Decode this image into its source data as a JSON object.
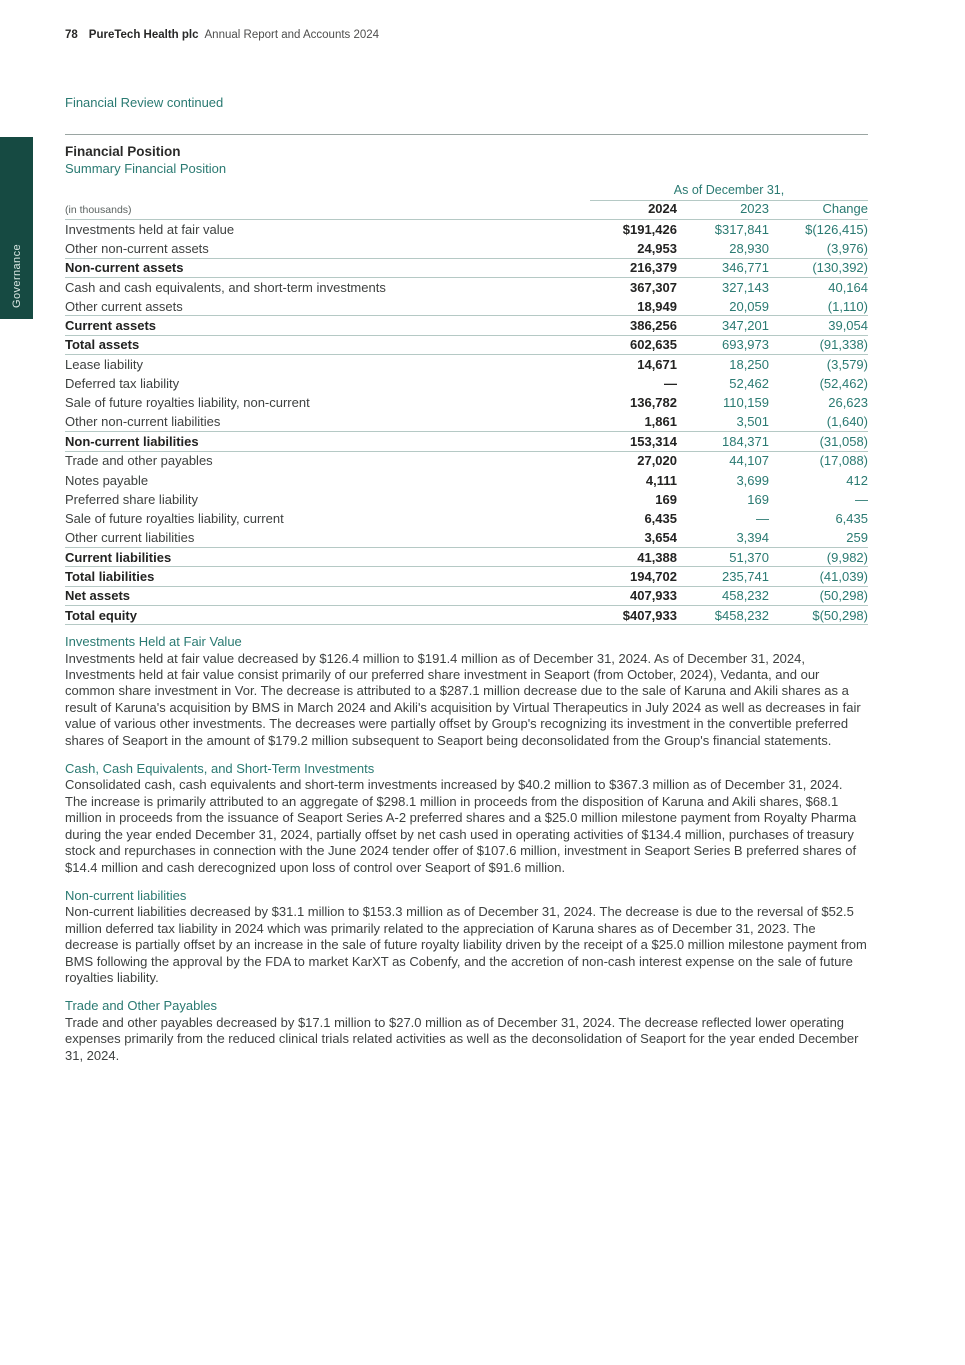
{
  "header": {
    "page_number": "78",
    "company": "PureTech Health plc",
    "report_title": "Annual Report and Accounts 2024"
  },
  "sidebar_tab": {
    "label": "Governance"
  },
  "financial_review": {
    "continued_heading": "Financial Review continued"
  },
  "financial_position": {
    "title": "Financial Position",
    "subtitle": "Summary Financial Position"
  },
  "table": {
    "group_header": "As of December 31,",
    "unit_label": "(in thousands)",
    "columns": [
      "2024",
      "2023",
      "Change"
    ],
    "rows": [
      {
        "label": "Investments held at fair value",
        "v2024": "$191,426",
        "v2023": "$317,841",
        "change": "$(126,415)",
        "bold": false,
        "top_rule": false
      },
      {
        "label": "Other non-current assets",
        "v2024": "24,953",
        "v2023": "28,930",
        "change": "(3,976)",
        "bold": false,
        "top_rule": false
      },
      {
        "label": "Non-current assets",
        "v2024": "216,379",
        "v2023": "346,771",
        "change": "(130,392)",
        "bold": true,
        "top_rule": true
      },
      {
        "label": "Cash and cash equivalents, and short-term investments",
        "v2024": "367,307",
        "v2023": "327,143",
        "change": "40,164",
        "bold": false,
        "top_rule": true
      },
      {
        "label": "Other current assets",
        "v2024": "18,949",
        "v2023": "20,059",
        "change": "(1,110)",
        "bold": false,
        "top_rule": false
      },
      {
        "label": "Current assets",
        "v2024": "386,256",
        "v2023": "347,201",
        "change": "39,054",
        "bold": true,
        "top_rule": true
      },
      {
        "label": "Total assets",
        "v2024": "602,635",
        "v2023": "693,973",
        "change": "(91,338)",
        "bold": true,
        "top_rule": true
      },
      {
        "label": "Lease liability",
        "v2024": "14,671",
        "v2023": "18,250",
        "change": "(3,579)",
        "bold": false,
        "top_rule": true
      },
      {
        "label": "Deferred tax liability",
        "v2024": "—",
        "v2023": "52,462",
        "change": "(52,462)",
        "bold": false,
        "top_rule": false
      },
      {
        "label": "Sale of future royalties liability, non-current",
        "v2024": "136,782",
        "v2023": "110,159",
        "change": "26,623",
        "bold": false,
        "top_rule": false
      },
      {
        "label": "Other non-current liabilities",
        "v2024": "1,861",
        "v2023": "3,501",
        "change": "(1,640)",
        "bold": false,
        "top_rule": false
      },
      {
        "label": "Non-current liabilities",
        "v2024": "153,314",
        "v2023": "184,371",
        "change": "(31,058)",
        "bold": true,
        "top_rule": true
      },
      {
        "label": "Trade and other payables",
        "v2024": "27,020",
        "v2023": "44,107",
        "change": "(17,088)",
        "bold": false,
        "top_rule": true
      },
      {
        "label": "Notes payable",
        "v2024": "4,111",
        "v2023": "3,699",
        "change": "412",
        "bold": false,
        "top_rule": false
      },
      {
        "label": "Preferred share liability",
        "v2024": "169",
        "v2023": "169",
        "change": "—",
        "bold": false,
        "top_rule": false
      },
      {
        "label": "Sale of future royalties liability, current",
        "v2024": "6,435",
        "v2023": "—",
        "change": "6,435",
        "bold": false,
        "top_rule": false
      },
      {
        "label": "Other current liabilities",
        "v2024": "3,654",
        "v2023": "3,394",
        "change": "259",
        "bold": false,
        "top_rule": false
      },
      {
        "label": "Current liabilities",
        "v2024": "41,388",
        "v2023": "51,370",
        "change": "(9,982)",
        "bold": true,
        "top_rule": true
      },
      {
        "label": "Total liabilities",
        "v2024": "194,702",
        "v2023": "235,741",
        "change": "(41,039)",
        "bold": true,
        "top_rule": true
      },
      {
        "label": "Net assets",
        "v2024": "407,933",
        "v2023": "458,232",
        "change": "(50,298)",
        "bold": true,
        "top_rule": true
      },
      {
        "label": "Total equity",
        "v2024": "$407,933",
        "v2023": "$458,232",
        "change": "$(50,298)",
        "bold": true,
        "top_rule": true
      }
    ]
  },
  "sections": [
    {
      "heading": "Investments Held at Fair Value",
      "body": "Investments held at fair value decreased by $126.4 million to $191.4 million as of December 31, 2024. As of December 31, 2024, Investments held at fair value consist primarily of our preferred share investment in Seaport (from October, 2024), Vedanta, and our common share investment in Vor. The decrease is attributed to a $287.1 million decrease due to the sale of Karuna and Akili shares as a result of Karuna's acquisition by BMS in March 2024 and Akili's acquisition by Virtual Therapeutics in July 2024 as well as decreases in fair value of various other investments. The decreases were partially offset by Group's recognizing its investment in the convertible preferred shares of Seaport in the amount of $179.2 million subsequent to Seaport being deconsolidated from the Group's financial statements."
    },
    {
      "heading": "Cash, Cash Equivalents, and Short-Term Investments",
      "body": "Consolidated cash, cash equivalents and short-term investments increased by $40.2 million to $367.3 million as of December 31, 2024. The increase is primarily attributed to an aggregate of $298.1 million in proceeds from the disposition of Karuna and Akili shares, $68.1 million in proceeds from the issuance of Seaport Series A-2 preferred shares and a $25.0 million milestone payment from Royalty Pharma during the year ended December 31, 2024, partially offset by net cash used in operating activities of $134.4 million, purchases of treasury stock and repurchases in connection with the June 2024 tender offer of $107.6 million, investment in Seaport Series B preferred shares of $14.4 million and cash derecognized upon loss of control over Seaport of $91.6 million."
    },
    {
      "heading": "Non-current liabilities",
      "body": "Non-current liabilities decreased by $31.1 million to $153.3 million as of December 31, 2024. The decrease is due to the reversal of $52.5 million deferred tax liability in 2024 which was primarily related to the appreciation of Karuna shares as of December 31, 2023. The decrease is partially offset by an increase in the sale of future royalty liability driven by the receipt of a $25.0 million milestone payment from BMS following the approval by the FDA to market KarXT as Cobenfy, and the accretion of non-cash interest expense on the sale of future royalties liability."
    },
    {
      "heading": "Trade and Other Payables",
      "body": "Trade and other payables decreased by $17.1 million to $27.0 million as of December 31, 2024. The decrease reflected lower operating expenses primarily from the reduced clinical trials related activities as well as the deconsolidation of Seaport for the year ended December 31, 2024."
    }
  ],
  "colors": {
    "teal_text": "#2a7a72",
    "dark_teal_tab": "#164a42",
    "body_text": "#3e4140",
    "bold_text": "#232322",
    "table_rule": "#b5c9c5",
    "divider_rule": "#9aa5a2",
    "background": "#ffffff"
  }
}
